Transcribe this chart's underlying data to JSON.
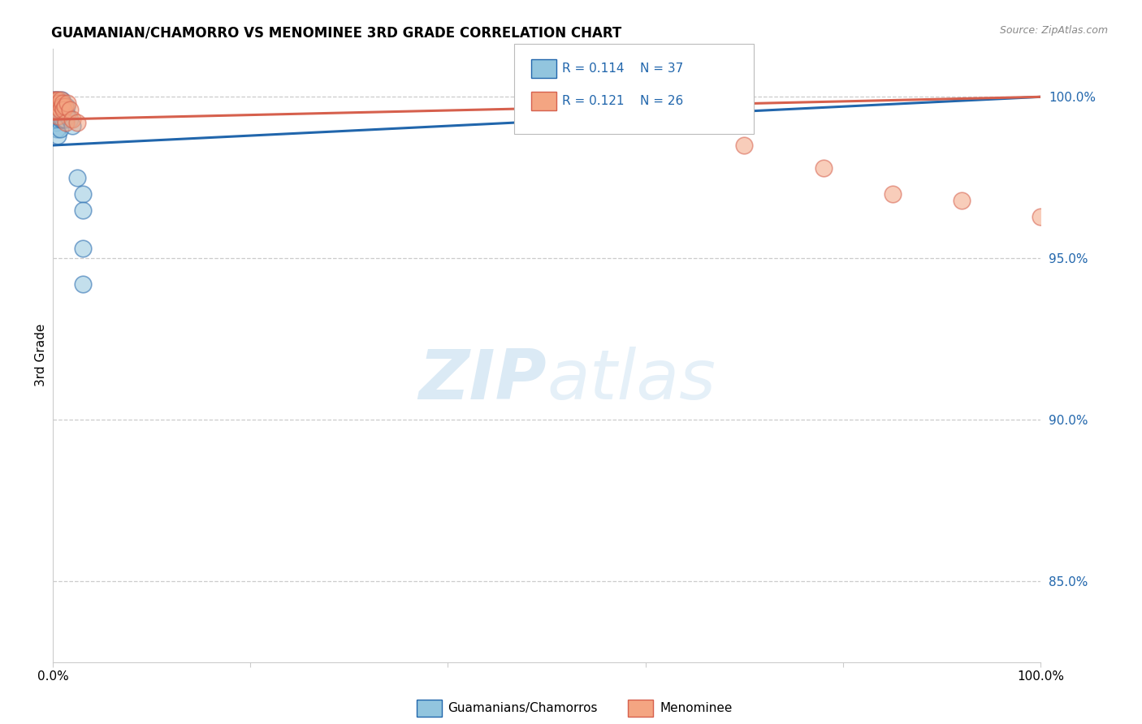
{
  "title": "GUAMANIAN/CHAMORRO VS MENOMINEE 3RD GRADE CORRELATION CHART",
  "source": "Source: ZipAtlas.com",
  "ylabel": "3rd Grade",
  "right_yticks": [
    "85.0%",
    "90.0%",
    "95.0%",
    "100.0%"
  ],
  "right_ytick_vals": [
    0.85,
    0.9,
    0.95,
    1.0
  ],
  "legend_blue_r": "R = 0.114",
  "legend_blue_n": "N = 37",
  "legend_pink_r": "R = 0.121",
  "legend_pink_n": "N = 26",
  "blue_color": "#92c5de",
  "pink_color": "#f4a582",
  "line_blue": "#2166ac",
  "line_pink": "#d6604d",
  "blue_line_start_y": 0.985,
  "blue_line_end_y": 1.0,
  "pink_line_start_y": 0.993,
  "pink_line_end_y": 1.0,
  "xlim": [
    0.0,
    1.0
  ],
  "ylim": [
    0.825,
    1.015
  ],
  "blue_x": [
    0.001,
    0.002,
    0.002,
    0.003,
    0.003,
    0.003,
    0.004,
    0.004,
    0.004,
    0.005,
    0.005,
    0.005,
    0.006,
    0.006,
    0.007,
    0.007,
    0.007,
    0.008,
    0.008,
    0.009,
    0.009,
    0.01,
    0.01,
    0.011,
    0.012,
    0.012,
    0.013,
    0.014,
    0.015,
    0.017,
    0.02,
    0.025,
    0.03,
    0.03,
    0.03,
    0.03,
    0.55
  ],
  "blue_y": [
    0.999,
    0.997,
    0.993,
    0.999,
    0.996,
    0.992,
    0.998,
    0.995,
    0.99,
    0.997,
    0.993,
    0.988,
    0.999,
    0.995,
    0.998,
    0.994,
    0.99,
    0.997,
    0.993,
    0.999,
    0.995,
    0.998,
    0.993,
    0.996,
    0.997,
    0.993,
    0.995,
    0.997,
    0.994,
    0.993,
    0.991,
    0.975,
    0.97,
    0.965,
    0.953,
    0.942,
    1.0
  ],
  "pink_x": [
    0.001,
    0.002,
    0.003,
    0.003,
    0.004,
    0.005,
    0.005,
    0.006,
    0.007,
    0.008,
    0.009,
    0.01,
    0.011,
    0.012,
    0.013,
    0.015,
    0.017,
    0.02,
    0.025,
    0.6,
    0.65,
    0.7,
    0.78,
    0.85,
    0.92,
    1.0
  ],
  "pink_y": [
    0.999,
    0.998,
    0.999,
    0.996,
    0.997,
    0.999,
    0.994,
    0.998,
    0.996,
    0.999,
    0.997,
    0.998,
    0.996,
    0.997,
    0.992,
    0.998,
    0.996,
    0.993,
    0.992,
    1.0,
    1.0,
    0.985,
    0.978,
    0.97,
    0.968,
    0.963
  ]
}
